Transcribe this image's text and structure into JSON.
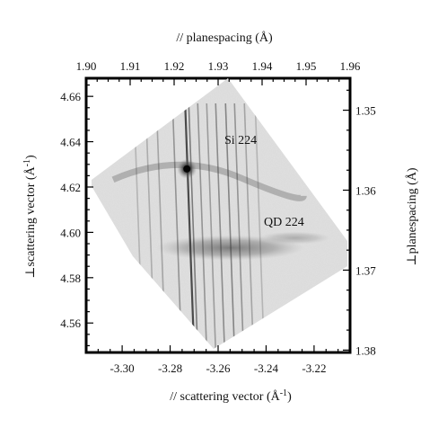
{
  "chart_data": {
    "type": "heatmap",
    "top_axis": {
      "label": "// planespacing (Å)",
      "ticks": [
        "1.90",
        "1.91",
        "1.92",
        "1.93",
        "1.94",
        "1.95",
        "1.96"
      ],
      "range": [
        1.9,
        1.96
      ]
    },
    "bottom_axis": {
      "label": "// scattering vector (Å",
      "label_sup": "-1",
      "label_end": ")",
      "ticks": [
        "-3.30",
        "-3.28",
        "-3.26",
        "-3.24",
        "-3.22"
      ],
      "range": [
        -3.315,
        -3.205
      ]
    },
    "left_axis": {
      "label": "⊥scattering vector (Å",
      "label_sup": "-1",
      "label_end": ")",
      "ticks": [
        "4.66",
        "4.64",
        "4.62",
        "4.60",
        "4.58",
        "4.56"
      ],
      "range": [
        4.547,
        4.668
      ]
    },
    "right_axis": {
      "label": "⊥planespacing (Å)",
      "ticks": [
        "1.35",
        "1.36",
        "1.37",
        "1.38"
      ],
      "range": [
        1.346,
        1.3803
      ]
    },
    "annotations": [
      {
        "text": "Si 224"
      },
      {
        "text": "QD 224"
      }
    ],
    "peaks": [
      {
        "name": "Si 224",
        "x": -3.273,
        "y": 4.628
      },
      {
        "name": "QD 224",
        "x": -3.258,
        "y": 4.592
      }
    ]
  }
}
